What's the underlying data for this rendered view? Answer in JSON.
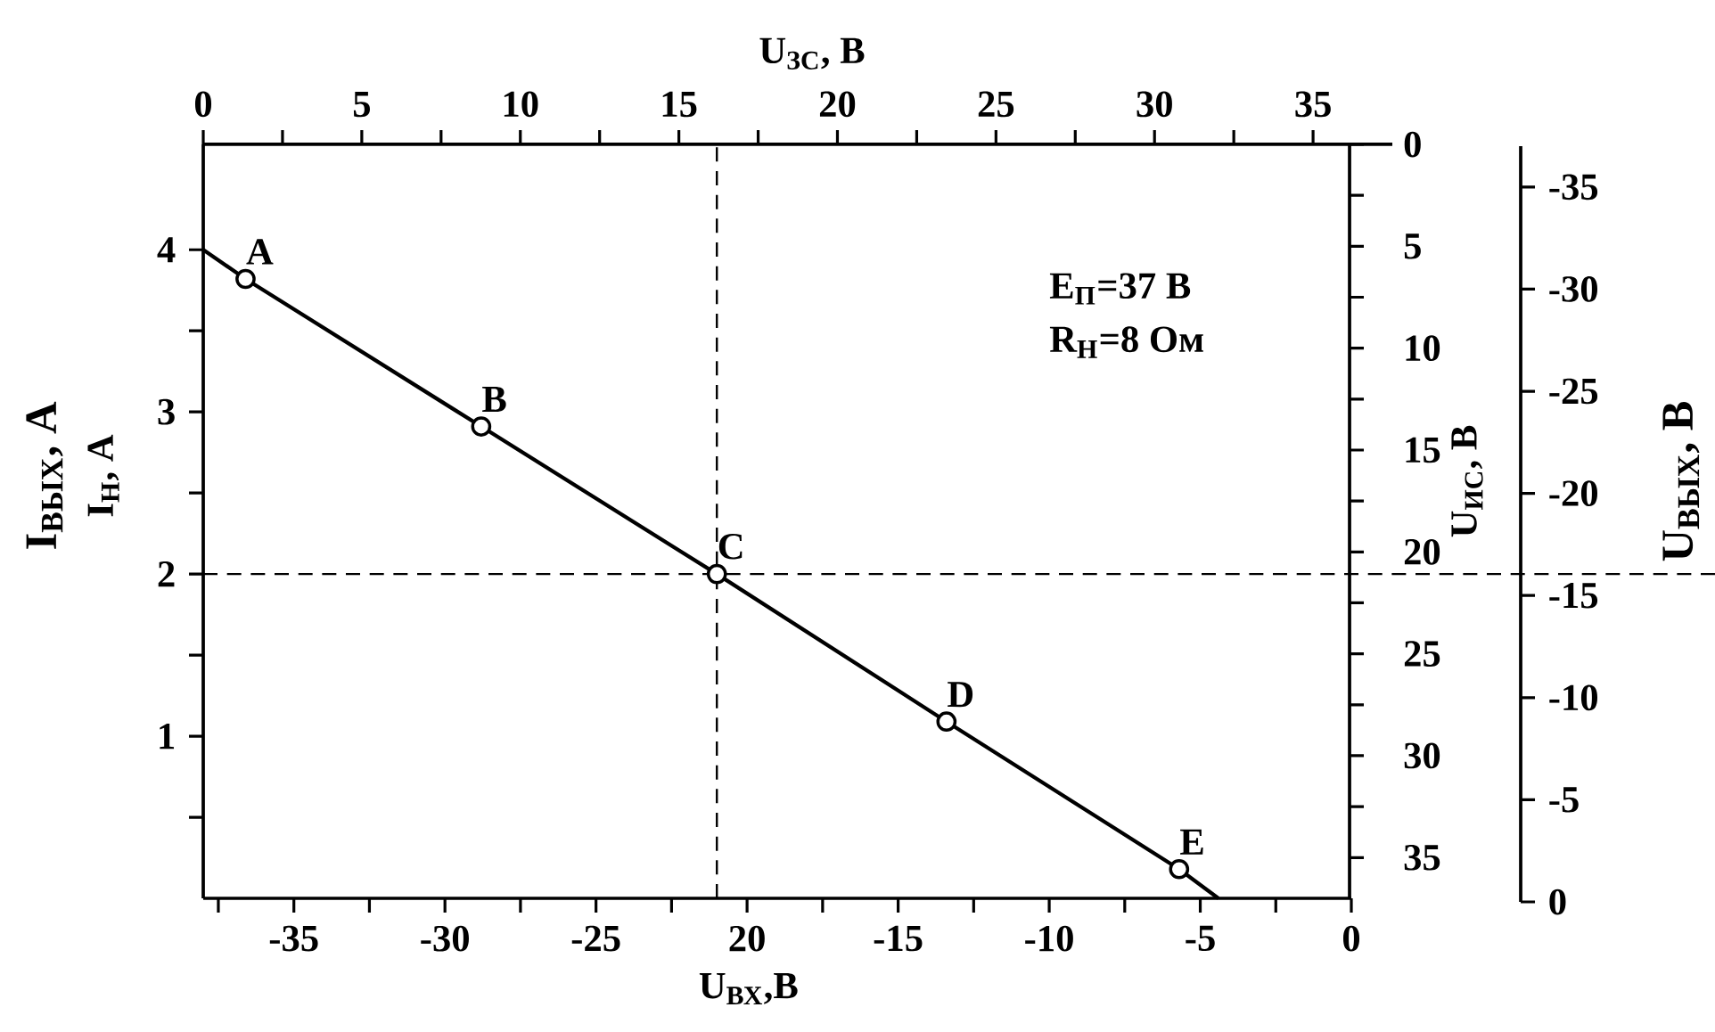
{
  "chart_data": {
    "type": "line",
    "xlabel": "U$_{ВХ}$,В",
    "ylabel": "I$_{ВЫХ}$, А",
    "x2label": "U$_{ЗС}$, В",
    "y2label": "U$_{ИС}$, В",
    "y3label": "U$_{ВЫХ}$, В",
    "xlim": [
      -38,
      0
    ],
    "ylim": [
      0,
      4.65
    ],
    "x2lim": [
      0,
      37.5
    ],
    "y2lim": [
      37,
      0
    ],
    "y3lim": [
      0,
      -37
    ],
    "xticks": [
      -35,
      -30,
      -25,
      {
        "value": -20,
        "label": "20"
      },
      -15,
      -10,
      -5,
      0,
      {
        "value": -37.5,
        "label": null
      },
      {
        "value": -32.5,
        "label": null
      },
      {
        "value": -27.5,
        "label": null
      },
      {
        "value": -22.5,
        "label": null
      },
      {
        "value": -17.5,
        "label": null
      },
      {
        "value": -12.5,
        "label": null
      },
      {
        "value": -7.5,
        "label": null
      },
      {
        "value": -2.5,
        "label": null
      }
    ],
    "yticks": [
      1,
      2,
      3,
      4,
      {
        "value": 0.5,
        "label": null
      },
      {
        "value": 1.5,
        "label": null
      },
      {
        "value": 2.5,
        "label": null
      },
      {
        "value": 3.5,
        "label": null
      }
    ],
    "x2ticks": [
      0,
      5,
      10,
      15,
      20,
      25,
      30,
      35,
      {
        "value": 2.5,
        "label": null
      },
      {
        "value": 7.5,
        "label": null
      },
      {
        "value": 12.5,
        "label": null
      },
      {
        "value": 17.5,
        "label": null
      },
      {
        "value": 22.5,
        "label": null
      },
      {
        "value": 27.5,
        "label": null
      },
      {
        "value": 32.5,
        "label": null
      }
    ],
    "y2ticks": [
      0,
      5,
      10,
      15,
      20,
      25,
      30,
      35,
      {
        "value": 2.5,
        "label": null
      },
      {
        "value": 7.5,
        "label": null
      },
      {
        "value": 12.5,
        "label": null
      },
      {
        "value": 17.5,
        "label": null
      },
      {
        "value": 22.5,
        "label": null
      },
      {
        "value": 27.5,
        "label": null
      },
      {
        "value": 32.5,
        "label": null
      }
    ],
    "y3ticks": [
      0,
      -5,
      -10,
      -15,
      -20,
      -25,
      -30,
      -35
    ],
    "series": [
      {
        "color": "#000000",
        "marker": "none",
        "line_style": "solid",
        "x": [
          -38,
          -36.6,
          -28.8,
          -21,
          -13.4,
          -5.7,
          -4.4
        ],
        "values": [
          4.0,
          3.82,
          2.91,
          2.0,
          1.09,
          0.18,
          0
        ]
      },
      {
        "type": "scatter",
        "color": "#000000",
        "marker": "circle",
        "x": [
          -36.6,
          -28.8,
          -21,
          -13.4,
          -5.7
        ],
        "values": [
          3.82,
          2.91,
          2.0,
          1.09,
          0.18
        ]
      }
    ],
    "ref_lines": [
      {
        "axis": "x",
        "value": -21,
        "line_style": "dashed",
        "color": "#000000"
      },
      {
        "axis": "y",
        "value": 2,
        "line_style": "dashed",
        "color": "#000000"
      }
    ],
    "annotations": [
      "I$_{Н}$, А",
      "E$_{П}$=37 В",
      "R$_{Н}$=8 Ом",
      {
        "text": "A",
        "x": -36.6,
        "y": 3.82
      },
      {
        "text": "B",
        "x": -28.8,
        "y": 2.91
      },
      {
        "text": "C",
        "x": -21,
        "y": 2.0
      },
      {
        "text": "D",
        "x": -13.4,
        "y": 1.09
      },
      {
        "text": "E",
        "x": -5.7,
        "y": 0.18
      }
    ]
  }
}
